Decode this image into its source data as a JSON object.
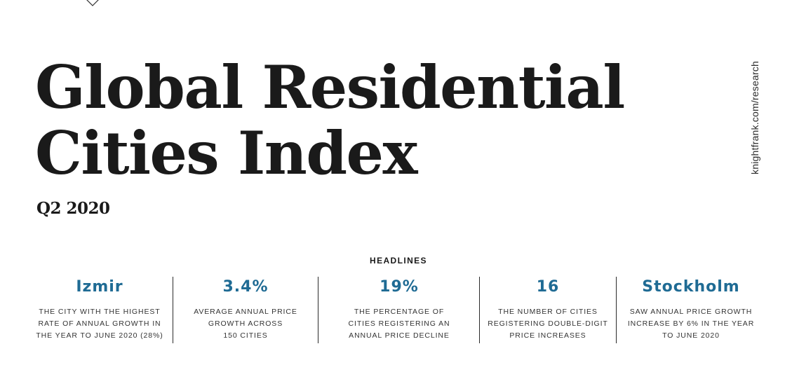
{
  "header": {
    "marker_icon": "chevron-down-icon"
  },
  "title": {
    "line1": "Global Residential",
    "line2": "Cities Index"
  },
  "subtitle": "Q2 2020",
  "side_url": "knightfrank.com/research",
  "headlines": {
    "label": "HEADLINES",
    "accent_color": "#1f6b94",
    "items": [
      {
        "value": "Izmir",
        "desc": [
          "THE CITY WITH THE HIGHEST",
          "RATE OF ANNUAL GROWTH IN",
          "THE YEAR TO JUNE 2020 (28%)"
        ]
      },
      {
        "value": "3.4%",
        "desc": [
          "AVERAGE ANNUAL PRICE",
          "GROWTH ACROSS",
          "150 CITIES"
        ]
      },
      {
        "value": "19%",
        "desc": [
          "THE PERCENTAGE OF",
          "CITIES REGISTERING AN",
          "ANNUAL PRICE DECLINE"
        ]
      },
      {
        "value": "16",
        "desc": [
          "THE NUMBER OF CITIES",
          "REGISTERING DOUBLE-DIGIT",
          "PRICE INCREASES"
        ]
      },
      {
        "value": "Stockholm",
        "desc": [
          "SAW ANNUAL PRICE GROWTH",
          "INCREASE BY 6% IN THE YEAR",
          "TO JUNE 2020"
        ]
      }
    ]
  }
}
